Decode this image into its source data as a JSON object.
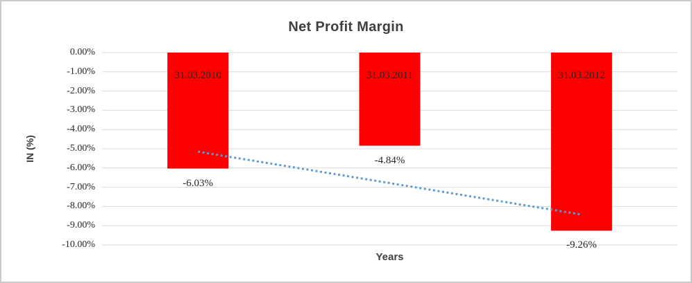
{
  "window": {
    "background": "#ffffff",
    "border_color": "#c9c9c9"
  },
  "chart_data": {
    "type": "bar",
    "title": "Net Profit Margin",
    "xlabel": "Years",
    "ylabel": "IN (%)",
    "categories": [
      "31.03.2010",
      "31.03.2011",
      "31.03.2012"
    ],
    "values": [
      -6.03,
      -4.84,
      -9.26
    ],
    "value_labels": [
      "-6.03%",
      "-4.84%",
      "-9.26%"
    ],
    "category_label_position": "inside-top",
    "value_label_position": "outside-end",
    "ylim": [
      0,
      -10
    ],
    "ytick_labels": [
      "0.00%",
      "-1.00%",
      "-2.00%",
      "-3.00%",
      "-4.00%",
      "-5.00%",
      "-6.00%",
      "-7.00%",
      "-8.00%",
      "-9.00%",
      "-10.00%"
    ],
    "grid": true,
    "gridline_color": "#d9d9d9",
    "bar_color": "#ff0000",
    "title_color": "#404040",
    "label_color": "#262626",
    "legend": "none",
    "trendline": {
      "style": "dotted",
      "color": "#5b9bd5",
      "start_value": -5.15,
      "end_value": -8.42
    }
  }
}
